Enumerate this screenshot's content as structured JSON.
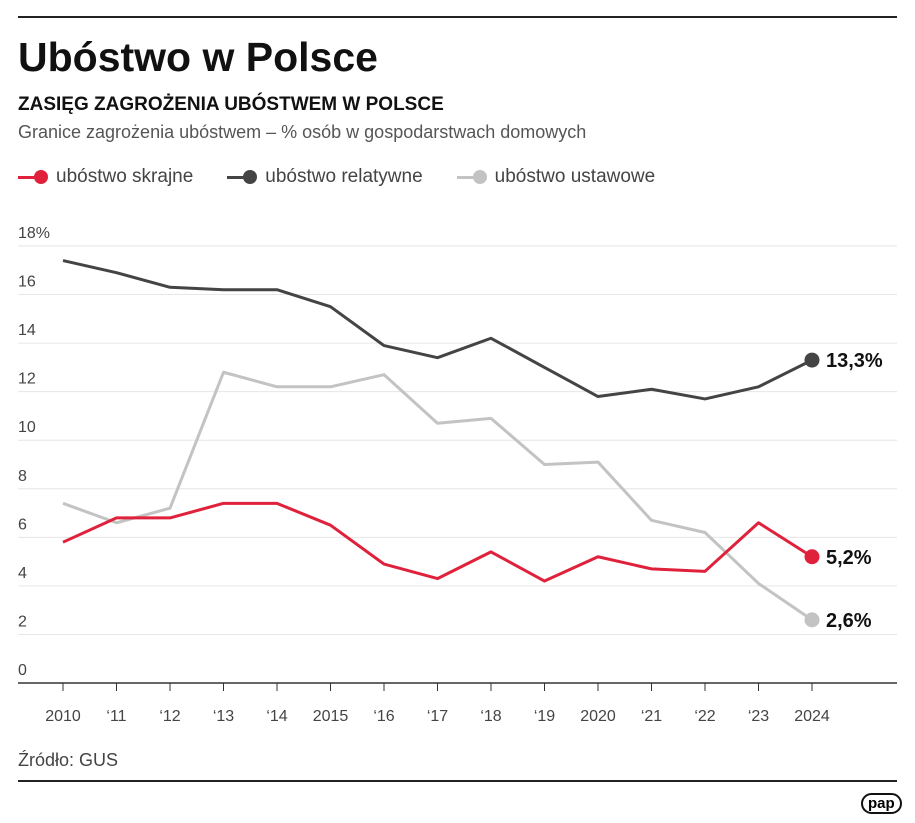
{
  "title": "Ubóstwo w Polsce",
  "subtitle": "ZASIĘG ZAGROŻENIA UBÓSTWEM W POLSCE",
  "description": "Granice zagrożenia ubóstwem – % osób w gospodarstwach domowych",
  "source": "Źródło: GUS",
  "logo": "pap",
  "chart_data": {
    "type": "line",
    "x": [
      2010,
      2011,
      2012,
      2013,
      2014,
      2015,
      2016,
      2017,
      2018,
      2019,
      2020,
      2021,
      2022,
      2023,
      2024
    ],
    "xtick_labels": [
      "2010",
      "‘11",
      "‘12",
      "‘13",
      "‘14",
      "2015",
      "‘16",
      "‘17",
      "‘18",
      "‘19",
      "2020",
      "‘21",
      "‘22",
      "‘23",
      "2024"
    ],
    "ylim": [
      0,
      18
    ],
    "yticks": [
      0,
      2,
      4,
      6,
      8,
      10,
      12,
      14,
      16,
      18
    ],
    "ytick_labels": [
      "0",
      "2",
      "4",
      "6",
      "8",
      "10",
      "12",
      "14",
      "16",
      "18%"
    ],
    "grid": true,
    "legend_position": "top-left",
    "series": [
      {
        "name": "ubóstwo skrajne",
        "color": "#e0213b",
        "values": [
          5.8,
          6.8,
          6.8,
          7.4,
          7.4,
          6.5,
          4.9,
          4.3,
          5.4,
          4.2,
          5.2,
          4.7,
          4.6,
          6.6,
          5.2
        ],
        "end_label": "5,2%"
      },
      {
        "name": "ubóstwo relatywne",
        "color": "#444444",
        "values": [
          17.4,
          16.9,
          16.3,
          16.2,
          16.2,
          15.5,
          13.9,
          13.4,
          14.2,
          13.0,
          11.8,
          12.1,
          11.7,
          12.2,
          13.3
        ],
        "end_label": "13,3%"
      },
      {
        "name": "ubóstwo ustawowe",
        "color": "#c3c3c3",
        "values": [
          7.4,
          6.6,
          7.2,
          12.8,
          12.2,
          12.2,
          12.7,
          10.7,
          10.9,
          9.0,
          9.1,
          6.7,
          6.2,
          4.1,
          2.6
        ],
        "end_label": "2,6%"
      }
    ]
  }
}
